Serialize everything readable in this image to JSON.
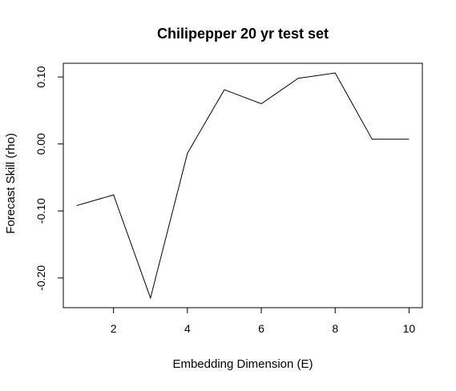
{
  "chart_data": {
    "type": "line",
    "title": "Chilipepper 20 yr test set",
    "xlabel": "Embedding Dimension (E)",
    "ylabel": "Forecast Skill (rho)",
    "x": [
      1,
      2,
      3,
      4,
      5,
      6,
      7,
      8,
      9,
      10
    ],
    "series": [
      {
        "values": [
          -0.092,
          -0.076,
          -0.23,
          -0.014,
          0.081,
          0.06,
          0.098,
          0.106,
          0.007,
          0.007
        ]
      }
    ],
    "xlim": [
      0.64,
      10.36
    ],
    "ylim": [
      -0.2444,
      0.1204
    ],
    "x_ticks": [
      2,
      4,
      6,
      8,
      10
    ],
    "x_tick_labels": [
      "2",
      "4",
      "6",
      "8",
      "10"
    ],
    "y_ticks": [
      -0.2,
      -0.1,
      0.0,
      0.1
    ],
    "y_tick_labels": [
      "-0.20",
      "-0.10",
      "0.00",
      "0.10"
    ],
    "grid": false,
    "line_color": "#000000"
  }
}
